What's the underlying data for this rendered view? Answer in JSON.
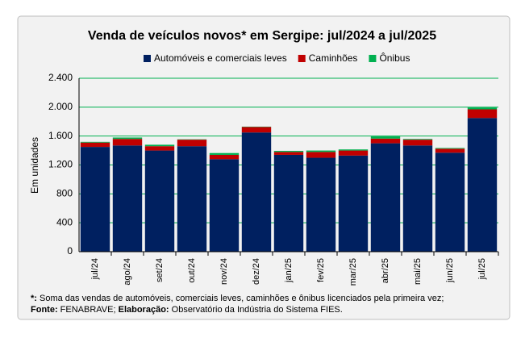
{
  "chart_data": {
    "type": "stacked-bar",
    "title": "Venda de veículos novos* em Sergipe: jul/2024 a jul/2025",
    "y_label": "Em unidades",
    "categories": [
      "jul/24",
      "ago/24",
      "set/24",
      "out/24",
      "nov/24",
      "dez/24",
      "jan/25",
      "fev/25",
      "mar/25",
      "abr/25",
      "mai/25",
      "jun/25",
      "jul/25"
    ],
    "series": [
      {
        "name": "Automóveis e comerciais leves",
        "color": "#002060",
        "values": [
          1450,
          1470,
          1400,
          1460,
          1280,
          1650,
          1340,
          1300,
          1330,
          1500,
          1470,
          1370,
          1850
        ]
      },
      {
        "name": "Caminhões",
        "color": "#c00000",
        "values": [
          60,
          90,
          60,
          90,
          60,
          75,
          40,
          80,
          70,
          65,
          80,
          55,
          120
        ]
      },
      {
        "name": "Ônibus",
        "color": "#00b050",
        "values": [
          10,
          20,
          20,
          5,
          25,
          5,
          15,
          20,
          15,
          30,
          10,
          10,
          25
        ]
      }
    ],
    "ylim": [
      0,
      2400
    ],
    "yticks": [
      0,
      400,
      800,
      {
        "value": 1200,
        "label": "1.200"
      },
      {
        "value": 1600,
        "label": "1.600"
      },
      {
        "value": 2000,
        "label": "2.000"
      },
      {
        "value": 2400,
        "label": "2.400"
      }
    ],
    "grid": true,
    "grid_color": "#00b050",
    "note_label": "*:",
    "note": "Soma das vendas de automóveis, comerciais leves, caminhões e ônibus licenciados pela primeira vez;",
    "source_label": "Fonte:",
    "source": "FENABRAVE;",
    "credit_label": "Elaboração:",
    "credit": "Observatório da Indústria do Sistema FIES."
  }
}
